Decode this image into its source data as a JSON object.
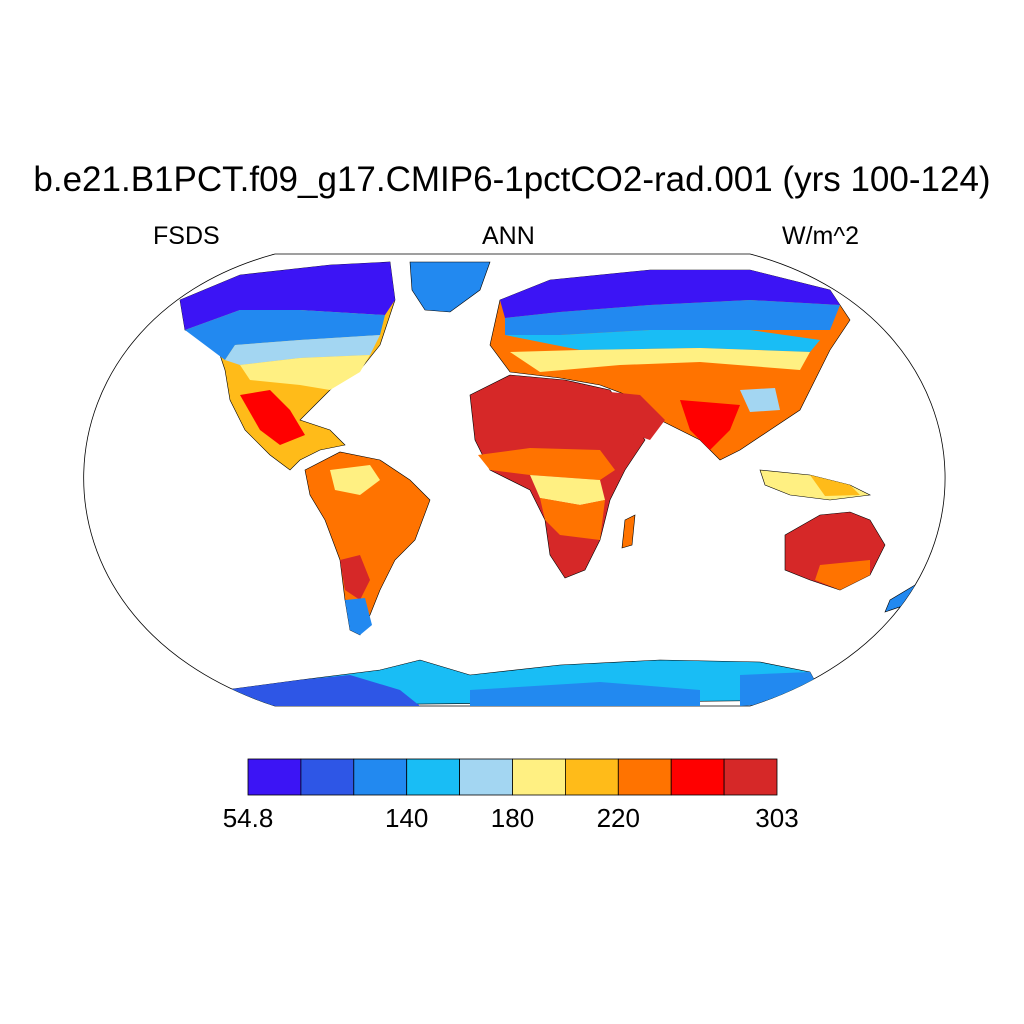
{
  "header": {
    "title": "b.e21.B1PCT.f09_g17.CMIP6-1pctCO2-rad.001 (yrs 100-124)",
    "variable": "FSDS",
    "season": "ANN",
    "units": "W/m^2"
  },
  "map": {
    "projection": "Robinson",
    "field": "FSDS"
  },
  "colorbar": {
    "colors": [
      "#3c14f5",
      "#2e56e6",
      "#2289f0",
      "#19bdf5",
      "#a3d6f2",
      "#fff082",
      "#ffbb19",
      "#ff7300",
      "#ff0000",
      "#d62828"
    ],
    "tick_labels": [
      {
        "label": "54.8",
        "boundary": 0
      },
      {
        "label": "140",
        "boundary": 3
      },
      {
        "label": "180",
        "boundary": 5
      },
      {
        "label": "220",
        "boundary": 7
      },
      {
        "label": "303",
        "boundary": 10
      }
    ]
  }
}
